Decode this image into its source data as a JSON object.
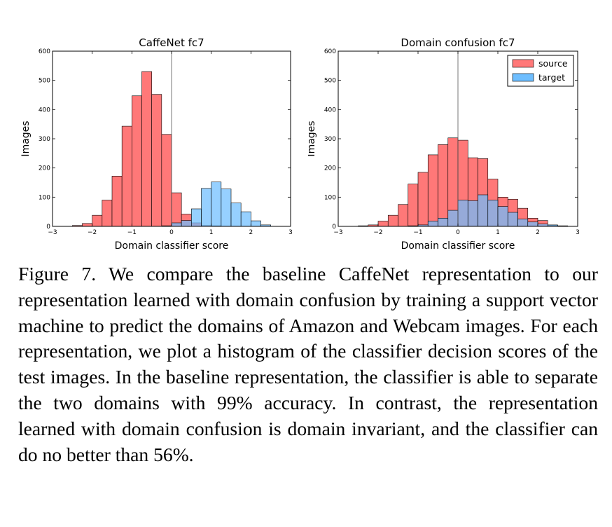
{
  "chart_data": [
    {
      "type": "bar",
      "title": "CaffeNet fc7",
      "xlabel": "Domain classifier score",
      "ylabel": "Images",
      "xlim": [
        -3,
        3
      ],
      "ylim": [
        0,
        600
      ],
      "xticks": [
        "−3",
        "−2",
        "−1",
        "0",
        "1",
        "2",
        "3"
      ],
      "yticks": [
        "0",
        "100",
        "200",
        "300",
        "400",
        "500",
        "600"
      ],
      "bin_width": 0.25,
      "grid": false,
      "reference_line_x": 0,
      "series": [
        {
          "bins": [
            [
              -2.5,
              3
            ],
            [
              -2.25,
              10
            ],
            [
              -2.0,
              38
            ],
            [
              -1.75,
              90
            ],
            [
              -1.5,
              172
            ],
            [
              -1.25,
              343
            ],
            [
              -1.0,
              447
            ],
            [
              -0.75,
              530
            ],
            [
              -0.5,
              452
            ],
            [
              -0.25,
              315
            ],
            [
              0.0,
              115
            ],
            [
              0.25,
              42
            ],
            [
              0.5,
              12
            ],
            [
              0.75,
              3
            ],
            [
              1.0,
              2
            ]
          ],
          "color": "#ff7878"
        },
        {
          "bins": [
            [
              -0.25,
              2
            ],
            [
              0.0,
              12
            ],
            [
              0.25,
              20
            ],
            [
              0.5,
              60
            ],
            [
              0.75,
              130
            ],
            [
              1.0,
              152
            ],
            [
              1.25,
              128
            ],
            [
              1.5,
              80
            ],
            [
              1.75,
              50
            ],
            [
              2.0,
              19
            ],
            [
              2.25,
              5
            ]
          ],
          "color": "#6ebeff"
        }
      ]
    },
    {
      "type": "bar",
      "title": "Domain confusion fc7",
      "xlabel": "Domain classifier score",
      "ylabel": "Images",
      "xlim": [
        -3,
        3
      ],
      "ylim": [
        0,
        600
      ],
      "xticks": [
        "−3",
        "−2",
        "−1",
        "0",
        "1",
        "2",
        "3"
      ],
      "yticks": [
        "0",
        "100",
        "200",
        "300",
        "400",
        "500",
        "600"
      ],
      "bin_width": 0.25,
      "grid": false,
      "reference_line_x": 0,
      "legend_position": "top-right",
      "series": [
        {
          "name": "source",
          "bins": [
            [
              -2.5,
              2
            ],
            [
              -2.25,
              5
            ],
            [
              -2.0,
              18
            ],
            [
              -1.75,
              38
            ],
            [
              -1.5,
              75
            ],
            [
              -1.25,
              145
            ],
            [
              -1.0,
              185
            ],
            [
              -0.75,
              245
            ],
            [
              -0.5,
              280
            ],
            [
              -0.25,
              303
            ],
            [
              0.0,
              295
            ],
            [
              0.25,
              235
            ],
            [
              0.5,
              232
            ],
            [
              0.75,
              162
            ],
            [
              1.0,
              100
            ],
            [
              1.25,
              93
            ],
            [
              1.5,
              62
            ],
            [
              1.75,
              28
            ],
            [
              2.0,
              20
            ],
            [
              2.25,
              3
            ],
            [
              2.5,
              2
            ]
          ],
          "color": "#ff7878"
        },
        {
          "name": "target",
          "bins": [
            [
              -1.25,
              2
            ],
            [
              -1.0,
              5
            ],
            [
              -0.75,
              18
            ],
            [
              -0.5,
              28
            ],
            [
              -0.25,
              55
            ],
            [
              0.0,
              90
            ],
            [
              0.25,
              88
            ],
            [
              0.5,
              108
            ],
            [
              0.75,
              90
            ],
            [
              1.0,
              68
            ],
            [
              1.25,
              48
            ],
            [
              1.5,
              25
            ],
            [
              1.75,
              15
            ],
            [
              2.0,
              8
            ],
            [
              2.25,
              5
            ]
          ],
          "color": "#6ebeff"
        }
      ]
    }
  ],
  "caption": "Figure 7. We compare the baseline CaffeNet representation to our representation learned with domain confusion by training a support vector machine to predict the domains of Amazon and Webcam images. For each representation, we plot a histogram of the classifier decision scores of the test images.  In the baseline representation, the classifier is able to separate the two domains with 99% accuracy.  In contrast, the representation learned with domain confusion is domain invariant, and the classifier can do no better than 56%.",
  "colors": {
    "source": "#ff7878",
    "target": "#6ebeff",
    "overlap": "#4a5a99"
  }
}
